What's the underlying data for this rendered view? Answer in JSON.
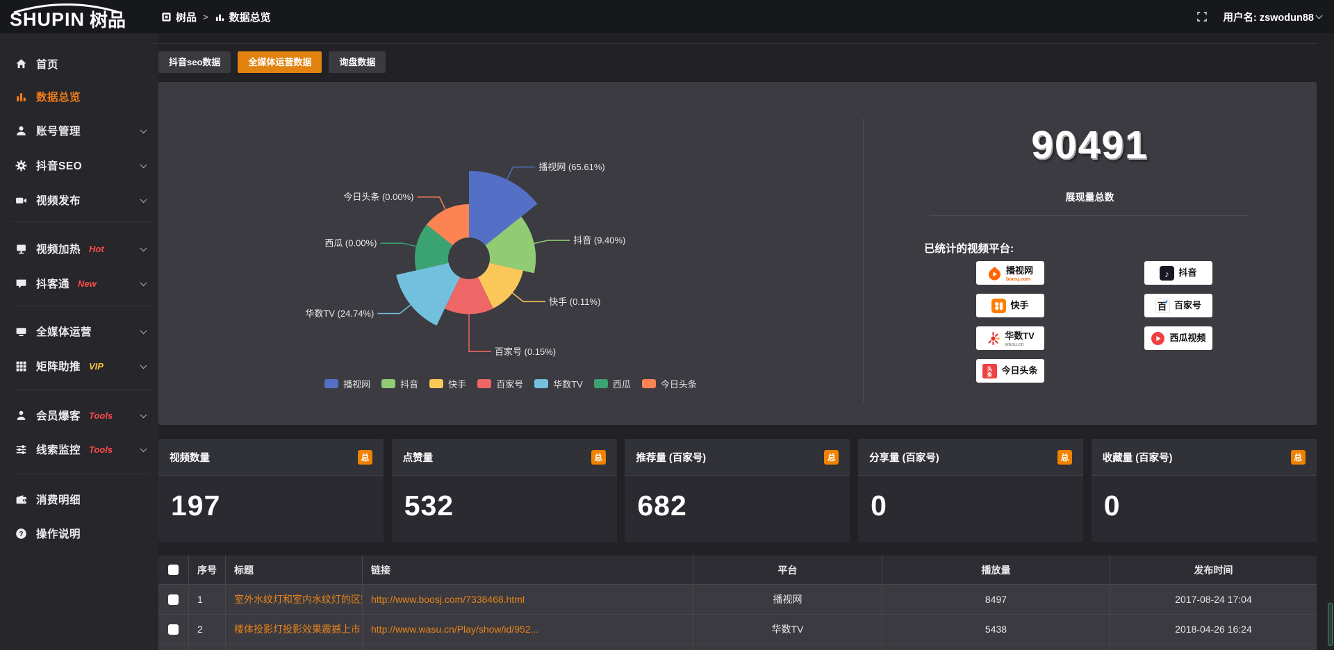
{
  "topbar": {
    "logo_primary": "SHUPIN",
    "logo_secondary": "树品",
    "breadcrumb": [
      "树品",
      "数据总览"
    ],
    "username": "用户名: zswodun88"
  },
  "sidebar": {
    "items": [
      {
        "label": "首页",
        "icon": "home-icon"
      },
      {
        "label": "数据总览",
        "icon": "bar-chart-icon",
        "active": true
      },
      {
        "label": "账号管理",
        "icon": "user-icon",
        "chevron": true
      },
      {
        "label": "抖音SEO",
        "icon": "gear-icon",
        "chevron": true
      },
      {
        "label": "视频发布",
        "icon": "video-camera-icon",
        "chevron": true
      },
      {
        "type": "divider"
      },
      {
        "label": "视频加热",
        "icon": "monitor-icon",
        "tag": "Hot",
        "tag_color": "#ff4a4a",
        "chevron": true
      },
      {
        "label": "抖客通",
        "icon": "chat-icon",
        "tag": "New",
        "tag_color": "#ff4a4a",
        "chevron": true
      },
      {
        "type": "divider"
      },
      {
        "label": "全媒体运营",
        "icon": "display-icon",
        "chevron": true
      },
      {
        "label": "矩阵助推",
        "icon": "grid-icon",
        "tag": "VIP",
        "tag_color": "#f6c33d",
        "chevron": true
      },
      {
        "type": "divider"
      },
      {
        "label": "会员爆客",
        "icon": "person-icon",
        "tag": "Tools",
        "tag_color": "#ff4a4a",
        "chevron": true
      },
      {
        "label": "线索监控",
        "icon": "sliders-icon",
        "tag": "Tools",
        "tag_color": "#ff4a4a",
        "chevron": true
      },
      {
        "type": "divider"
      },
      {
        "label": "消费明细",
        "icon": "wallet-icon"
      },
      {
        "label": "操作说明",
        "icon": "question-icon"
      }
    ]
  },
  "tabs": [
    {
      "label": "抖音seo数据",
      "active": false
    },
    {
      "label": "全媒体运营数据",
      "active": true
    },
    {
      "label": "询盘数据",
      "active": false
    }
  ],
  "chart_data": {
    "type": "pie",
    "style": "rose-donut",
    "legend_position": "bottom",
    "series": [
      {
        "name": "播视网",
        "value": 65.61,
        "percent": "65.61%",
        "color": "#5470c6"
      },
      {
        "name": "抖音",
        "value": 9.4,
        "percent": "9.40%",
        "color": "#91cc75"
      },
      {
        "name": "快手",
        "value": 0.11,
        "percent": "0.11%",
        "color": "#fac858"
      },
      {
        "name": "百家号",
        "value": 0.15,
        "percent": "0.15%",
        "color": "#ee6666"
      },
      {
        "name": "华数TV",
        "value": 24.74,
        "percent": "24.74%",
        "color": "#73c0de"
      },
      {
        "name": "西瓜",
        "value": 0.0,
        "percent": "0.00%",
        "color": "#3ba272"
      },
      {
        "name": "今日头条",
        "value": 0.0,
        "percent": "0.00%",
        "color": "#fc8452"
      }
    ]
  },
  "summary": {
    "total": "90491",
    "total_label": "展现量总数",
    "platforms_title": "已统计的视频平台:",
    "platforms": [
      {
        "name": "播视网",
        "sub": "boosj.com",
        "icon": "boosj-logo",
        "column": 1
      },
      {
        "name": "快手",
        "icon": "kuaishou-logo",
        "column": 1
      },
      {
        "name": "华数TV",
        "sub": "wasu.cn",
        "icon": "wasu-logo",
        "column": 1
      },
      {
        "name": "今日头条",
        "icon": "toutiao-logo",
        "column": 1
      },
      {
        "name": "抖音",
        "icon": "douyin-logo",
        "column": 2
      },
      {
        "name": "百家号",
        "icon": "baijiahao-logo",
        "column": 2
      },
      {
        "name": "西瓜视频",
        "icon": "xigua-logo",
        "column": 2
      }
    ]
  },
  "stat_cards": [
    {
      "title": "视频数量",
      "badge": "总",
      "value": "197"
    },
    {
      "title": "点赞量",
      "badge": "总",
      "value": "532"
    },
    {
      "title": "推荐量 (百家号)",
      "badge": "总",
      "value": "682"
    },
    {
      "title": "分享量 (百家号)",
      "badge": "总",
      "value": "0"
    },
    {
      "title": "收藏量 (百家号)",
      "badge": "总",
      "value": "0"
    }
  ],
  "table": {
    "columns": [
      "",
      "序号",
      "标题",
      "链接",
      "平台",
      "播放量",
      "发布时间"
    ],
    "rows": [
      {
        "seq": "1",
        "title": "室外水纹灯和室内水纹灯的区别和简介",
        "link": "http://www.boosj.com/7338468.html",
        "platform": "播视网",
        "plays": "8497",
        "time": "2017-08-24 17:04"
      },
      {
        "seq": "2",
        "title": "楼体投影灯投影效果震撼上市",
        "link": "http://www.wasu.cn/Play/show/id/952...",
        "platform": "华数TV",
        "plays": "5438",
        "time": "2018-04-26 16:24"
      }
    ]
  },
  "colors": {
    "accent": "#ee8208",
    "panel": "#3b3b41",
    "topbar": "#17181c"
  }
}
